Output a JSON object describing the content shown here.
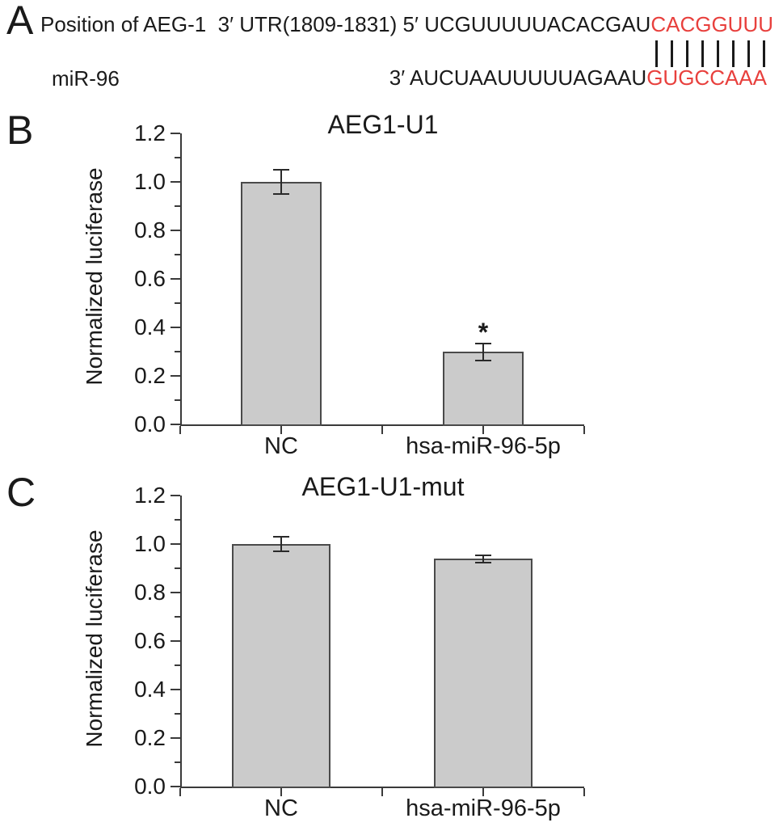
{
  "figure": {
    "background": "#ffffff",
    "text_color": "#1a1a1a",
    "highlight_color": "#e8403d",
    "bar_fill": "#cbcbcb",
    "bar_border": "#4a4a4a",
    "axis_color": "#3a3a3a",
    "error_bar_color": "#2a2a2a"
  },
  "panel_a": {
    "label": "A",
    "utr_line": {
      "black_text": "Position of AEG-1  3′ UTR(1809-1831) 5′ UCGUUUUUACACGAU",
      "red_text": "CACGGUUU"
    },
    "pairing": {
      "count": 8,
      "mark": "|"
    },
    "mir_line": {
      "name": "miR-96",
      "black_text": "3′ AUCUAAUUUUUAGAAU",
      "red_text": "GUGCCAAA"
    }
  },
  "chart_data": [
    {
      "type": "bar",
      "panel_label": "B",
      "title": "AEG1-U1",
      "categories": [
        "NC",
        "hsa-miR-96-5p"
      ],
      "values": [
        1.0,
        0.3
      ],
      "errors": [
        0.05,
        0.035
      ],
      "significance": [
        "",
        "*"
      ],
      "xlabel": "",
      "ylabel": "Normalized luciferase",
      "ylim": [
        0,
        1.2
      ],
      "ytick_step": 0.2,
      "yminor_step": 0.1,
      "ytick_labels": [
        "0.0",
        "0.2",
        "0.4",
        "0.6",
        "0.8",
        "1.0",
        "1.2"
      ],
      "grid": false,
      "legend": null
    },
    {
      "type": "bar",
      "panel_label": "C",
      "title": "AEG1-U1-mut",
      "categories": [
        "NC",
        "hsa-miR-96-5p"
      ],
      "values": [
        1.0,
        0.94
      ],
      "errors": [
        0.03,
        0.015
      ],
      "significance": [
        "",
        ""
      ],
      "xlabel": "",
      "ylabel": "Normalized luciferase",
      "ylim": [
        0,
        1.2
      ],
      "ytick_step": 0.2,
      "yminor_step": 0.1,
      "ytick_labels": [
        "0.0",
        "0.2",
        "0.4",
        "0.6",
        "0.8",
        "1.0",
        "1.2"
      ],
      "grid": false,
      "legend": null
    }
  ]
}
